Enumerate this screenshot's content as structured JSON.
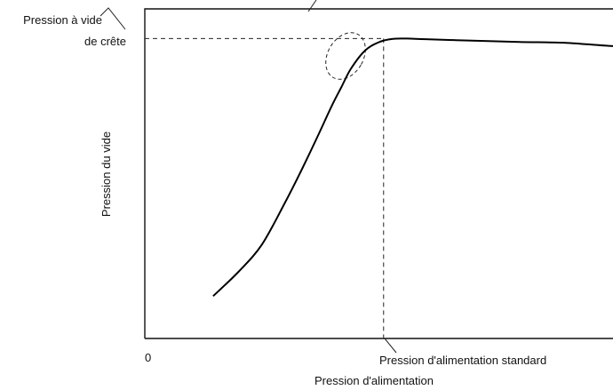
{
  "chart_data": {
    "type": "line",
    "title": "",
    "xlabel": "Pression d'alimentation",
    "ylabel": "Pression du vide",
    "origin_label": "0",
    "annotations": {
      "peak_label_line1": "Pression à vide",
      "peak_label_line2": "de crête",
      "standard_label": "Pression d'alimentation standard"
    },
    "xlim": [
      0,
      100
    ],
    "ylim": [
      0,
      100
    ],
    "grid": false,
    "legend": "none",
    "standard_supply_pressure": 51,
    "peak_vacuum_pressure": 99,
    "series": [
      {
        "x": [
          14.6,
          20,
          25,
          30,
          33.6,
          37,
          40,
          42,
          44,
          47,
          50,
          53,
          56,
          60,
          70,
          80,
          90,
          100,
          110
        ],
        "values": [
          14,
          22,
          31,
          45,
          56,
          67,
          77,
          83,
          89,
          95,
          97.8,
          98.9,
          99,
          98.8,
          98.3,
          97.9,
          97.6,
          96.5,
          96.1
        ]
      }
    ]
  }
}
